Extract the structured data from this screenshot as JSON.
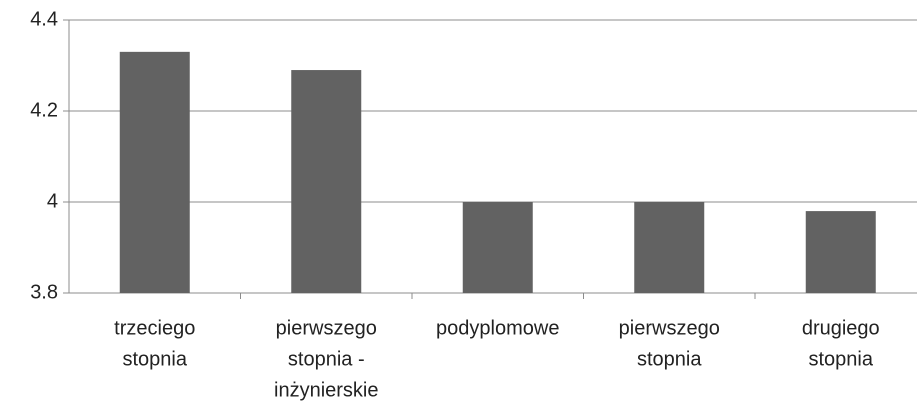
{
  "chart_data": {
    "type": "bar",
    "categories": [
      [
        "trzeciego",
        "stopnia"
      ],
      [
        "pierwszego",
        "stopnia -",
        "inżynierskie"
      ],
      [
        "podyplomowe"
      ],
      [
        "pierwszego",
        "stopnia"
      ],
      [
        "drugiego",
        "stopnia"
      ]
    ],
    "values": [
      4.33,
      4.29,
      4.0,
      4.0,
      3.98
    ],
    "color": "#626262",
    "ylim": [
      3.8,
      4.4
    ],
    "yticks": [
      3.8,
      4,
      4.2,
      4.4
    ],
    "grid": true
  }
}
